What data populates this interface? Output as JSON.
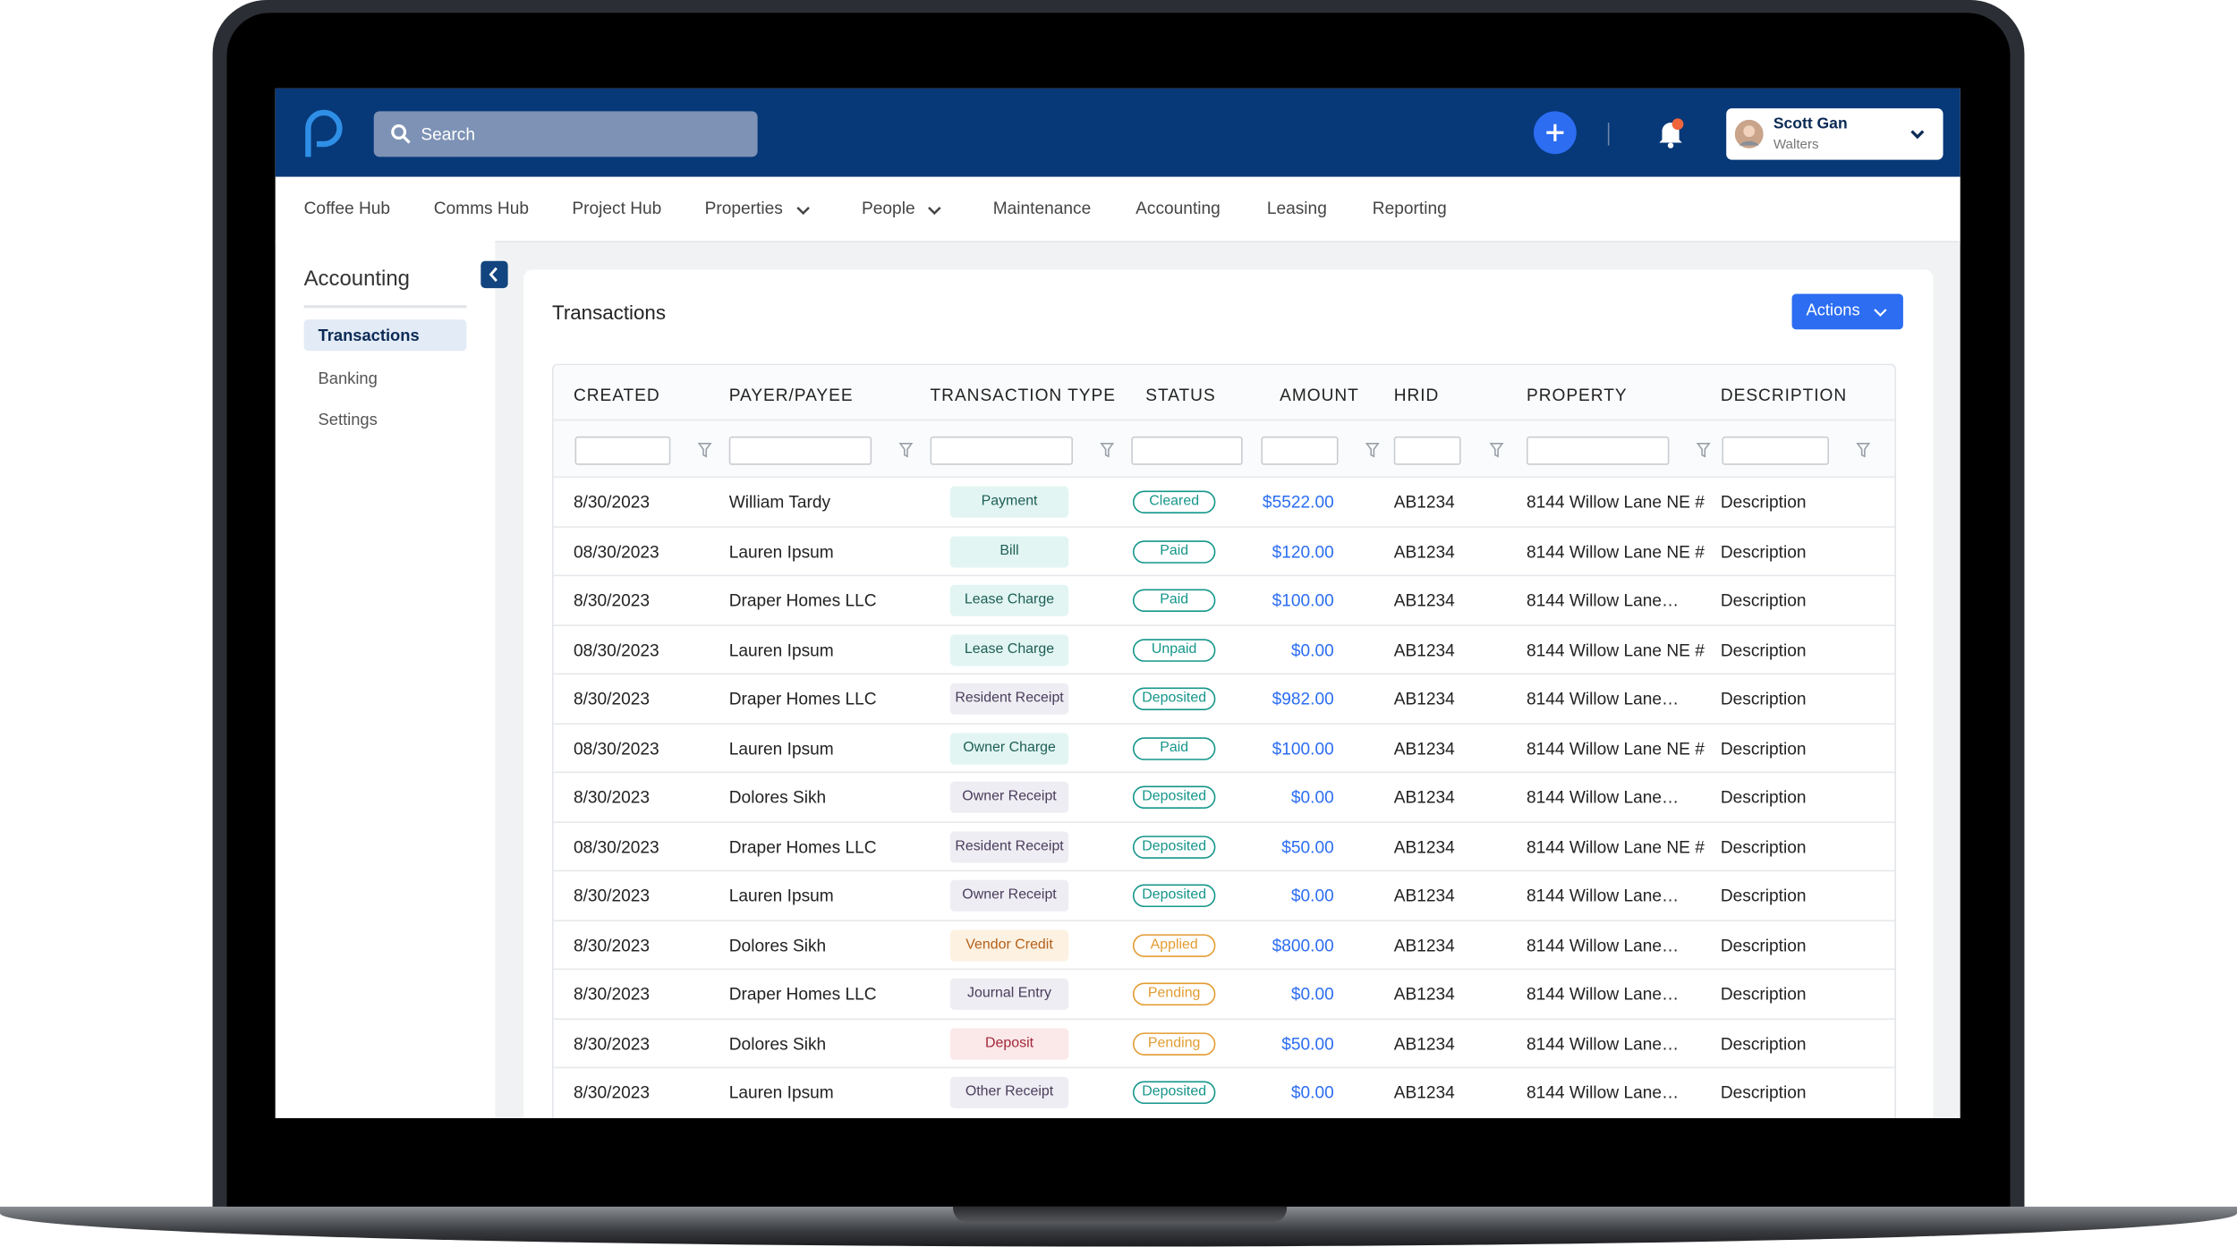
{
  "header": {
    "search": "Search",
    "user": {
      "name": "Scott Gan",
      "company": "Walters"
    }
  },
  "nav": [
    "Coffee Hub",
    "Comms Hub",
    "Project Hub",
    "Properties",
    "People",
    "Maintenance",
    "Accounting",
    "Leasing",
    "Reporting"
  ],
  "sidebar": {
    "title": "Accounting",
    "items": [
      "Transactions",
      "Banking",
      "Settings"
    ]
  },
  "page": {
    "title": "Transactions",
    "actions": "Actions"
  },
  "table": {
    "columns": [
      "CREATED",
      "PAYER/PAYEE",
      "TRANSACTION TYPE",
      "STATUS",
      "AMOUNT",
      "HRID",
      "PROPERTY",
      "DESCRIPTION"
    ],
    "rows": [
      [
        "8/30/2023",
        "William Tardy",
        "Payment",
        "Cleared",
        "$5522.00",
        "AB1234",
        "8144 Willow Lane NE #",
        "Description"
      ],
      [
        "08/30/2023",
        "Lauren Ipsum",
        "Bill",
        "Paid",
        "$120.00",
        "AB1234",
        "8144 Willow Lane NE #",
        "Description"
      ],
      [
        "8/30/2023",
        "Draper Homes LLC",
        "Lease Charge",
        "Paid",
        "$100.00",
        "AB1234",
        "8144 Willow Lane…",
        "Description"
      ],
      [
        "08/30/2023",
        "Lauren Ipsum",
        "Lease Charge",
        "Unpaid",
        "$0.00",
        "AB1234",
        "8144 Willow Lane NE #",
        "Description"
      ],
      [
        "8/30/2023",
        "Draper Homes LLC",
        "Resident Receipt",
        "Deposited",
        "$982.00",
        "AB1234",
        "8144 Willow Lane…",
        "Description"
      ],
      [
        "08/30/2023",
        "Lauren Ipsum",
        "Owner Charge",
        "Paid",
        "$100.00",
        "AB1234",
        "8144 Willow Lane NE #",
        "Description"
      ],
      [
        "8/30/2023",
        "Dolores Sikh",
        "Owner Receipt",
        "Deposited",
        "$0.00",
        "AB1234",
        "8144 Willow Lane…",
        "Description"
      ],
      [
        "08/30/2023",
        "Draper Homes LLC",
        "Resident Receipt",
        "Deposited",
        "$50.00",
        "AB1234",
        "8144 Willow Lane NE #",
        "Description"
      ],
      [
        "8/30/2023",
        "Lauren Ipsum",
        "Owner Receipt",
        "Deposited",
        "$0.00",
        "AB1234",
        "8144 Willow Lane…",
        "Description"
      ],
      [
        "8/30/2023",
        "Dolores Sikh",
        "Vendor Credit",
        "Applied",
        "$800.00",
        "AB1234",
        "8144 Willow Lane…",
        "Description"
      ],
      [
        "8/30/2023",
        "Draper Homes LLC",
        "Journal Entry",
        "Pending",
        "$0.00",
        "AB1234",
        "8144 Willow Lane…",
        "Description"
      ],
      [
        "8/30/2023",
        "Dolores Sikh",
        "Deposit",
        "Pending",
        "$50.00",
        "AB1234",
        "8144 Willow Lane…",
        "Description"
      ],
      [
        "8/30/2023",
        "Lauren Ipsum",
        "Other Receipt",
        "Deposited",
        "$0.00",
        "AB1234",
        "8144 Willow Lane…",
        "Description"
      ]
    ]
  }
}
